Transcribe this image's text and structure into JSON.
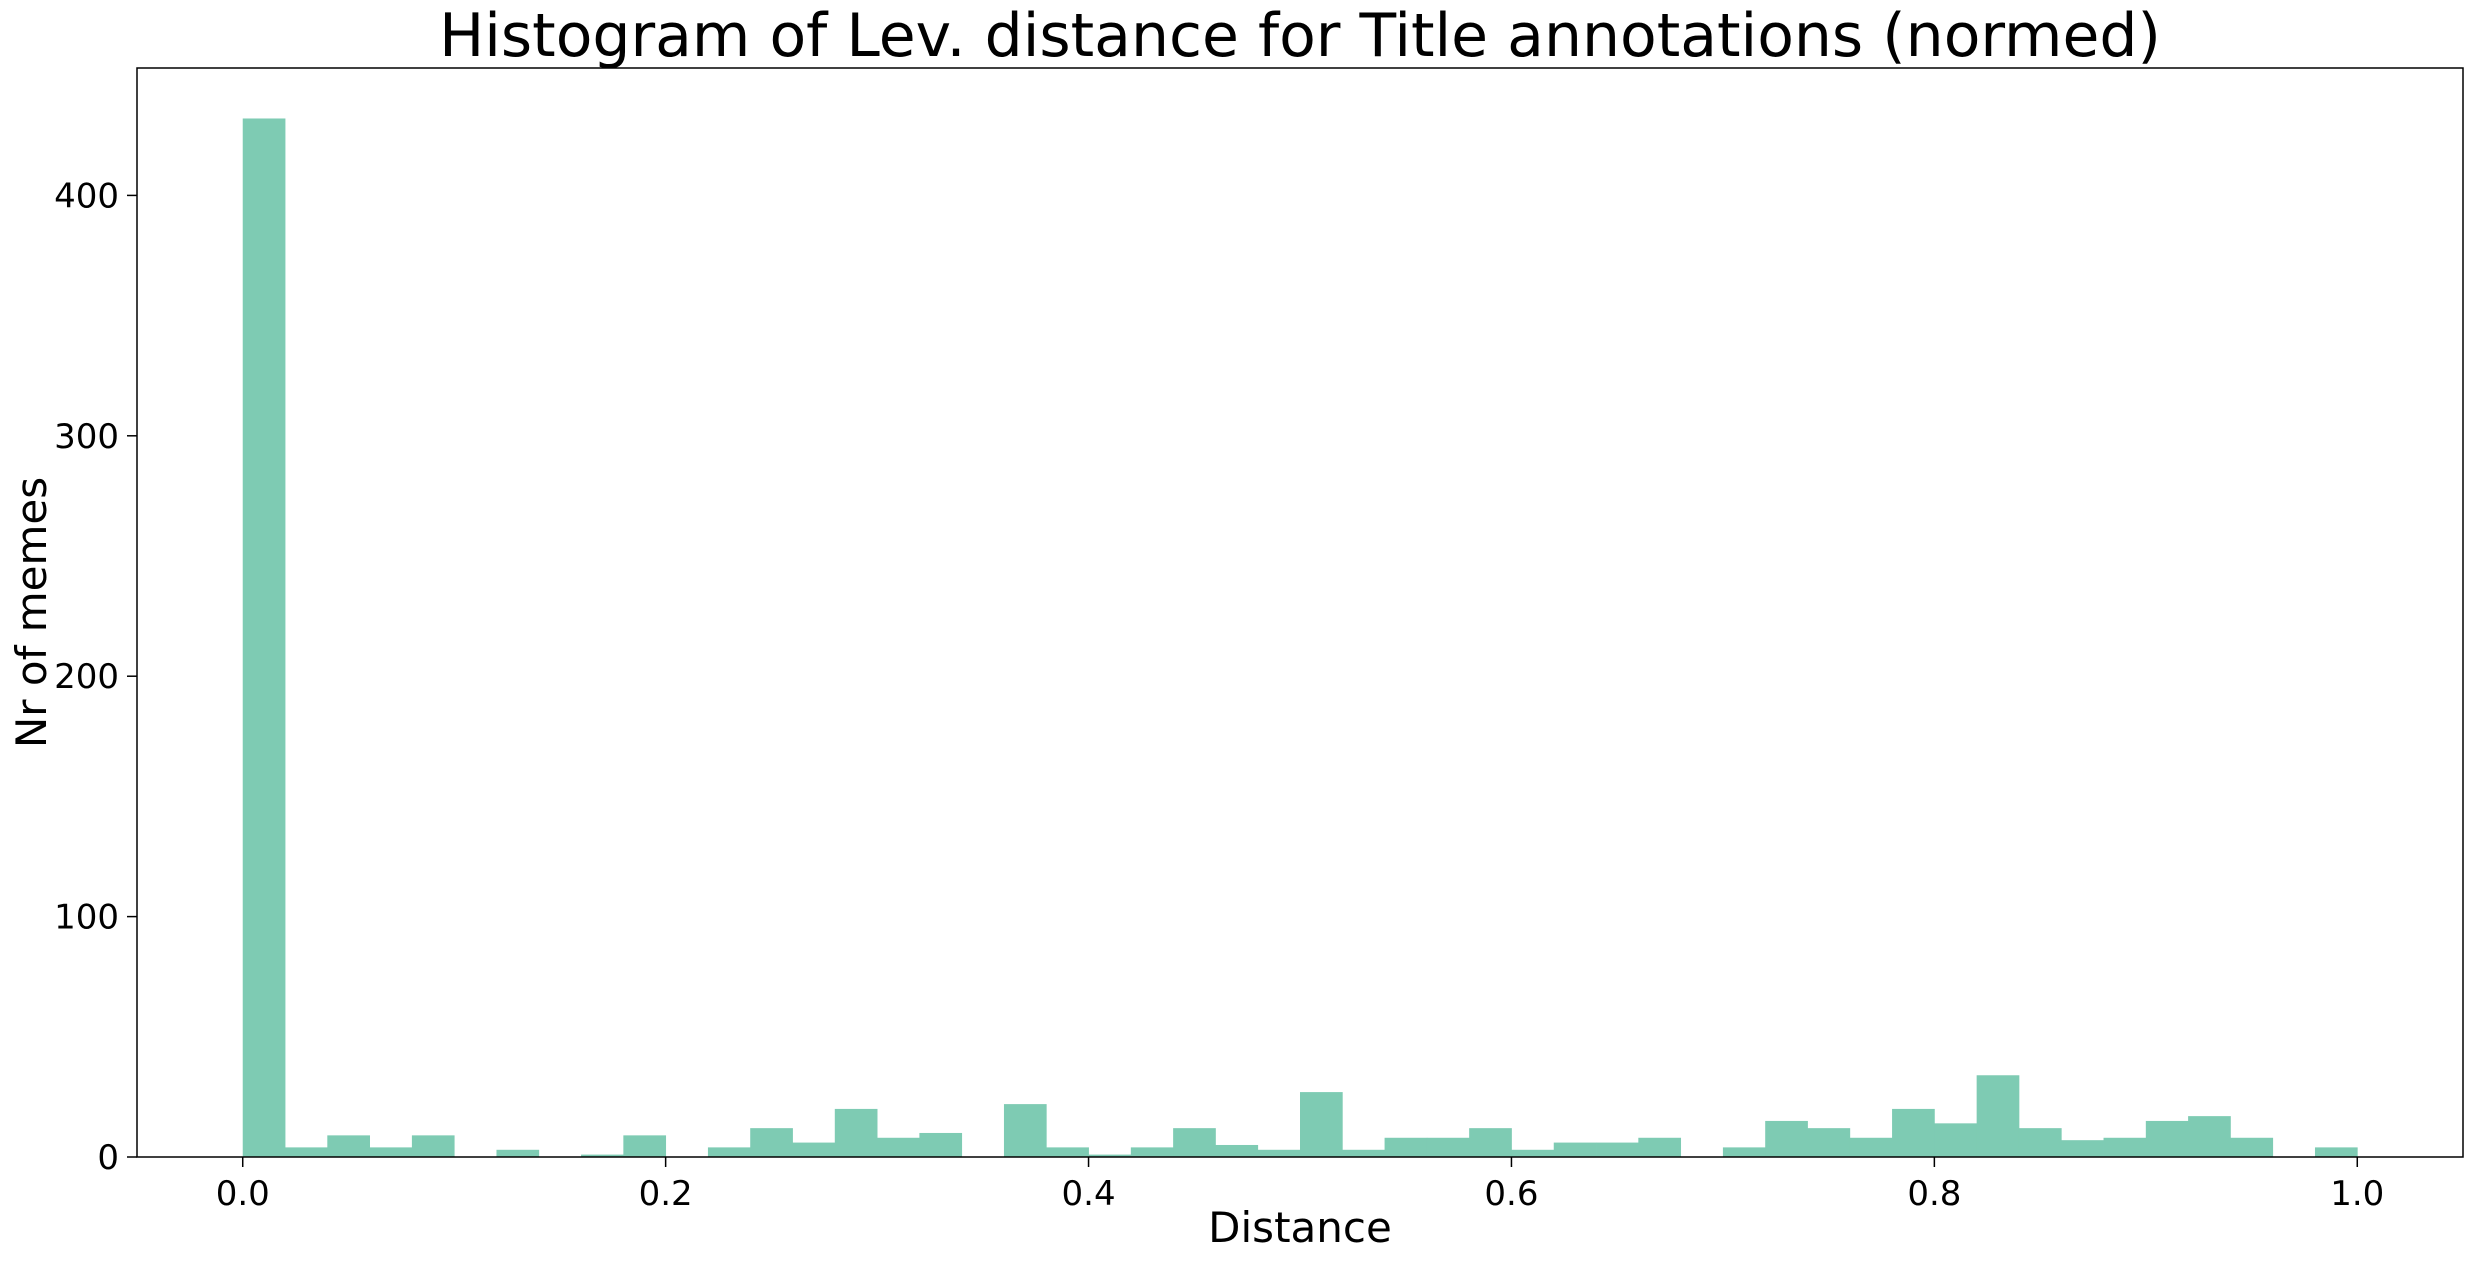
{
  "chart_data": {
    "type": "bar",
    "title": "Histogram of Lev. distance for Title annotations (normed)",
    "xlabel": "Distance",
    "ylabel": "Nr of memes",
    "xlim": [
      -0.05,
      1.05
    ],
    "ylim": [
      0,
      453
    ],
    "grid": false,
    "bar_color": "#7ecbb3",
    "bin_width": 0.02,
    "bin_starts": [
      0.0,
      0.02,
      0.04,
      0.06,
      0.08,
      0.1,
      0.12,
      0.14,
      0.16,
      0.18,
      0.2,
      0.22,
      0.24,
      0.26,
      0.28,
      0.3,
      0.32,
      0.34,
      0.36,
      0.38,
      0.4,
      0.42,
      0.44,
      0.46,
      0.48,
      0.5,
      0.52,
      0.54,
      0.56,
      0.58,
      0.6,
      0.62,
      0.64,
      0.66,
      0.68,
      0.7,
      0.72,
      0.74,
      0.76,
      0.78,
      0.8,
      0.82,
      0.84,
      0.86,
      0.88,
      0.9,
      0.92,
      0.94,
      0.96,
      0.98
    ],
    "values": [
      432,
      4,
      9,
      4,
      9,
      0,
      3,
      0,
      1,
      9,
      0,
      4,
      12,
      6,
      20,
      8,
      10,
      0,
      22,
      4,
      1,
      4,
      12,
      5,
      3,
      27,
      3,
      8,
      8,
      12,
      3,
      6,
      6,
      8,
      0,
      4,
      15,
      12,
      8,
      20,
      14,
      34,
      12,
      7,
      8,
      15,
      17,
      8,
      0,
      4
    ],
    "x_ticks": [
      0.0,
      0.2,
      0.4,
      0.6,
      0.8,
      1.0
    ],
    "x_tick_labels": [
      "0.0",
      "0.2",
      "0.4",
      "0.6",
      "0.8",
      "1.0"
    ],
    "y_ticks": [
      0,
      100,
      200,
      300,
      400
    ],
    "y_tick_labels": [
      "0",
      "100",
      "200",
      "300",
      "400"
    ]
  }
}
